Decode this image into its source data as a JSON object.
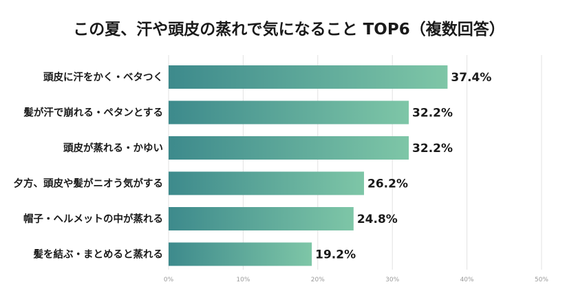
{
  "chart_data": {
    "type": "bar",
    "orientation": "horizontal",
    "title": "この夏、汗や頭皮の蒸れで気になること TOP6（複数回答）",
    "categories": [
      "頭皮に汗をかく・ベタつく",
      "髪が汗で崩れる・ペタンとする",
      "頭皮が蒸れる・かゆい",
      "夕方、頭皮や髪がニオう気がする",
      "帽子・ヘルメットの中が蒸れる",
      "髪を結ぶ・まとめると蒸れる"
    ],
    "values": [
      37.4,
      32.2,
      32.2,
      26.2,
      24.8,
      19.2
    ],
    "value_labels": [
      "37.4%",
      "32.2%",
      "32.2%",
      "26.2%",
      "24.8%",
      "19.2%"
    ],
    "xlim": [
      0,
      50
    ],
    "ticks": [
      "0%",
      "10%",
      "20%",
      "30%",
      "40%",
      "50%"
    ],
    "grid": true,
    "bar_color_start": "#3d8a8c",
    "bar_color_end": "#7ec6a7"
  }
}
